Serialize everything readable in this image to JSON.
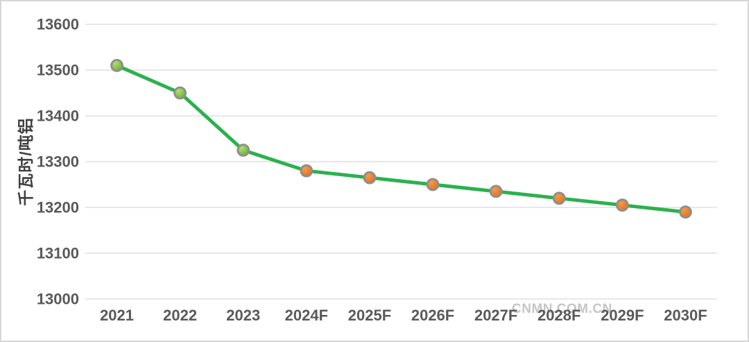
{
  "watermark": "CNMN.COM.CN",
  "colors": {
    "line": "#2bb14e",
    "marker_actual_light": "#b2dd73",
    "marker_actual_dark": "#5ea82c",
    "marker_forecast_light": "#f59a4e",
    "marker_forecast_dark": "#d96c18",
    "marker_border": "#8e8e8e",
    "grid": "#e7e7e7",
    "tick_text": "#595959",
    "axis_title_text": "#404040",
    "watermark_text": "#c6c6c6"
  },
  "chart_data": {
    "type": "line",
    "title": "",
    "xlabel": "",
    "ylabel": "千瓦时/吨铝",
    "categories": [
      "2021",
      "2022",
      "2023",
      "2024F",
      "2025F",
      "2026F",
      "2027F",
      "2028F",
      "2029F",
      "2030F"
    ],
    "series": [
      {
        "name": "千瓦时/吨铝",
        "values": [
          13510,
          13450,
          13325,
          13280,
          13265,
          13250,
          13235,
          13220,
          13205,
          13190
        ]
      }
    ],
    "ylim": [
      13000,
      13600
    ],
    "yticks": [
      13600,
      13500,
      13400,
      13300,
      13200,
      13100,
      13000
    ],
    "grid": "horizontal",
    "legend": "none",
    "forecast_marker_suffix": "F"
  }
}
